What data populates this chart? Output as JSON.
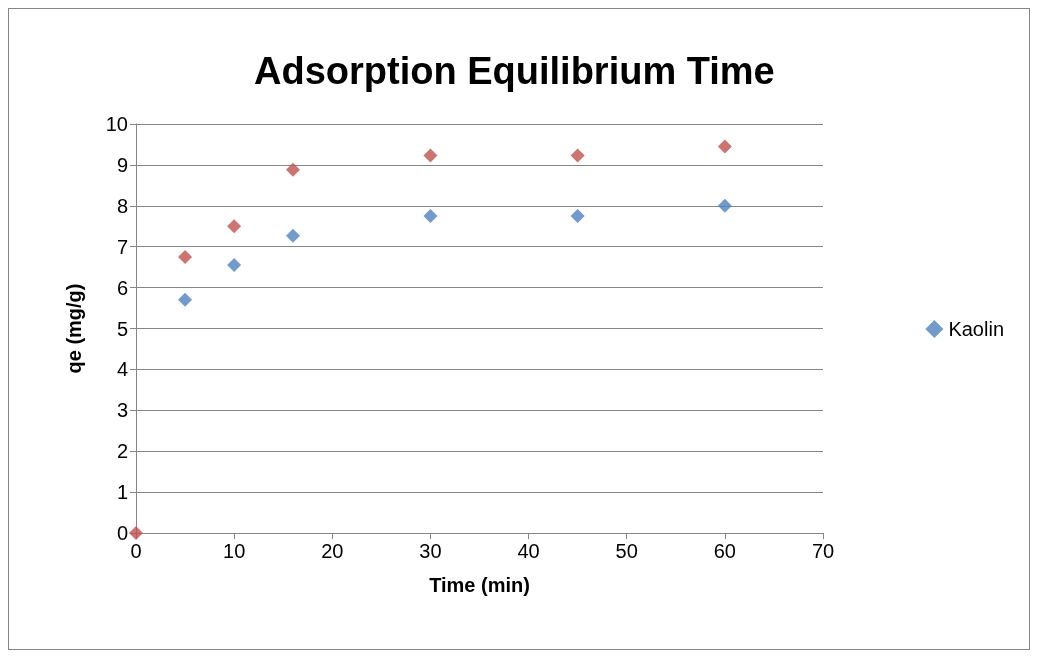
{
  "chart_data": {
    "type": "scatter",
    "title": "Adsorption Equilibrium Time",
    "xlabel": "Time (min)",
    "ylabel": "qe (mg/g)",
    "x": [
      0,
      5,
      10,
      16,
      30,
      45,
      60
    ],
    "series": [
      {
        "name": "Kaolin",
        "color": "#4f81bd",
        "values": [
          null,
          5.7,
          6.55,
          7.27,
          7.75,
          7.75,
          8.0
        ]
      },
      {
        "color": "#c0504d",
        "values": [
          0,
          6.75,
          7.5,
          8.88,
          9.23,
          9.23,
          9.45
        ]
      }
    ],
    "xlim": [
      0,
      70
    ],
    "xticks": [
      0,
      10,
      20,
      30,
      40,
      50,
      60,
      70
    ],
    "ylim": [
      0,
      10
    ],
    "yticks": [
      0,
      1,
      2,
      3,
      4,
      5,
      6,
      7,
      8,
      9,
      10
    ],
    "grid": "y",
    "legend": "right",
    "marker": "diamond"
  }
}
